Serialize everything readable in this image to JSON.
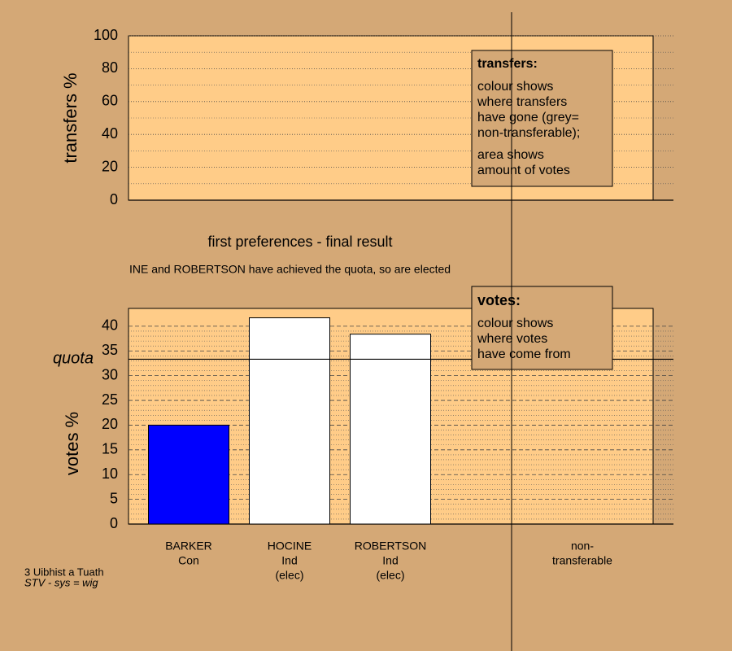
{
  "chart_data": [
    {
      "type": "bar",
      "ylabel": "transfers %",
      "ylim": [
        0,
        100
      ],
      "yticks": [
        0,
        20,
        40,
        60,
        80,
        100
      ],
      "legend": {
        "title": "transfers:",
        "lines": [
          [
            "colour shows",
            "where transfers",
            "have gone (grey=",
            "non-transferable);"
          ],
          [
            "area shows",
            "amount of votes"
          ]
        ]
      }
    },
    {
      "type": "bar",
      "title": "first preferences - final result",
      "subtitle": "INE and ROBERTSON have achieved the quota, so are elected",
      "ylabel": "votes %",
      "ylim": [
        0,
        43.6
      ],
      "yticks": [
        0,
        5,
        10,
        15,
        20,
        25,
        30,
        35,
        40
      ],
      "quota": 33.33,
      "quota_label": "quota",
      "categories": [
        [
          "BARKER",
          "Con"
        ],
        [
          "HOCINE",
          "Ind",
          "(elec)"
        ],
        [
          "ROBERTSON",
          "Ind",
          "(elec)"
        ],
        [
          "non-",
          "transferable"
        ]
      ],
      "values": [
        20,
        41.7,
        38.4,
        null
      ],
      "colors": [
        "#0000ff",
        "#ffffff",
        "#ffffff",
        null
      ],
      "legend": {
        "title": "votes:",
        "lines": [
          [
            "colour shows",
            "where votes",
            "have come from"
          ]
        ]
      }
    }
  ],
  "footer": [
    "3 Uibhist a Tuath",
    "STV - sys = wig"
  ]
}
